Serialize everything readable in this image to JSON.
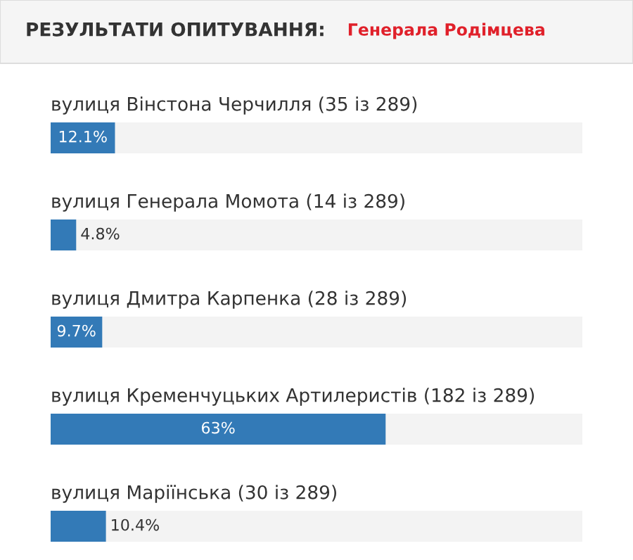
{
  "chart_data": {
    "type": "bar",
    "orientation": "horizontal",
    "title": "РЕЗУЛЬТАТИ ОПИТУВАННЯ:",
    "subtitle": "Генерала Родімцева",
    "categories": [
      "вулиця Вінстона Черчилля (35 із 289)",
      "вулиця Генерала Момота (14 із 289)",
      "вулиця Дмитра Карпенка (28 із 289)",
      "вулиця Кременчуцьких Артилеристів (182 із 289)",
      "вулиця Маріїнська (30 із 289)"
    ],
    "values": [
      12.1,
      4.8,
      9.7,
      63,
      10.4
    ],
    "value_labels": [
      "12.1%",
      "4.8%",
      "9.7%",
      "63%",
      "10.4%"
    ],
    "color": "#337ab7",
    "xlim": [
      0,
      100
    ]
  }
}
